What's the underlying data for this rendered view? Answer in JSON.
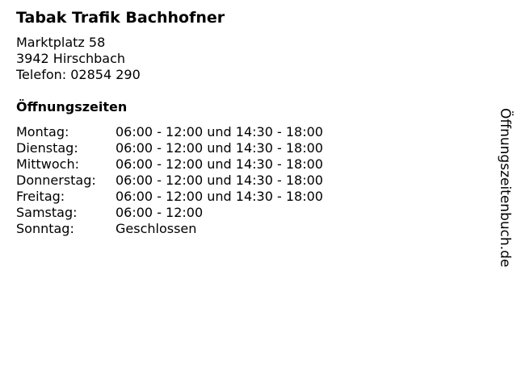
{
  "business": {
    "name": "Tabak Trafik Bachhofner",
    "street": "Marktplatz 58",
    "city": "3942 Hirschbach",
    "phone": "Telefon: 02854 290"
  },
  "hours_heading": "Öffnungszeiten",
  "hours": [
    {
      "day": "Montag:",
      "time": "06:00 - 12:00 und 14:30 - 18:00"
    },
    {
      "day": "Dienstag:",
      "time": "06:00 - 12:00 und 14:30 - 18:00"
    },
    {
      "day": "Mittwoch:",
      "time": "06:00 - 12:00 und 14:30 - 18:00"
    },
    {
      "day": "Donnerstag:",
      "time": "06:00 - 12:00 und 14:30 - 18:00"
    },
    {
      "day": "Freitag:",
      "time": "06:00 - 12:00 und 14:30 - 18:00"
    },
    {
      "day": "Samstag:",
      "time": "06:00 - 12:00"
    },
    {
      "day": "Sonntag:",
      "time": "Geschlossen"
    }
  ],
  "watermark": "Öffnungszeitenbuch.de"
}
